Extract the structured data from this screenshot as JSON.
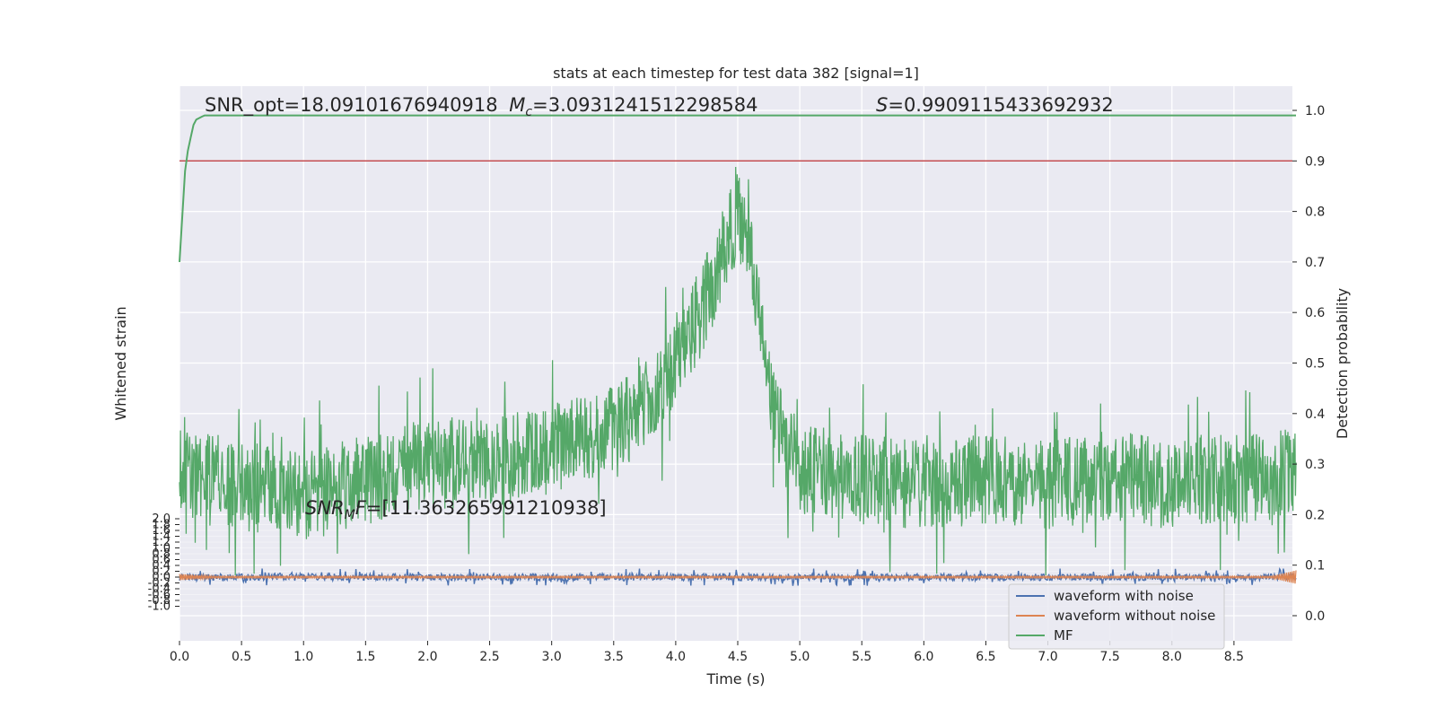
{
  "chart_data": {
    "type": "line",
    "title": "stats at each timestep for test data 382 [signal=1]",
    "xlabel": "Time (s)",
    "ylabel_left": "Whitened strain",
    "ylabel_right": "Detection probability",
    "xlim": [
      0.0,
      9.0
    ],
    "ylim_right": [
      -0.05,
      1.05
    ],
    "ylim_left": [
      -1.0,
      2.0
    ],
    "x_ticks": [
      "0.0",
      "0.5",
      "1.0",
      "1.5",
      "2.0",
      "2.5",
      "3.0",
      "3.5",
      "4.0",
      "4.5",
      "5.0",
      "5.5",
      "6.0",
      "6.5",
      "7.0",
      "7.5",
      "8.0",
      "8.5"
    ],
    "y_right_ticks": [
      "0.0",
      "0.1",
      "0.2",
      "0.3",
      "0.4",
      "0.5",
      "0.6",
      "0.7",
      "0.8",
      "0.9",
      "1.0"
    ],
    "y_left_ticks": [
      "-1.0",
      "-0.8",
      "-0.6",
      "-0.4",
      "-0.2",
      "0.0",
      "0.2",
      "0.4",
      "0.6",
      "0.8",
      "1.0",
      "1.2",
      "1.4",
      "1.6",
      "1.8",
      "2.0"
    ],
    "grid": true,
    "threshold": 0.9,
    "annotations": {
      "snr_opt": "SNR_opt=18.09101676940918",
      "mc_symbol": "M",
      "mc_sub": "c",
      "mc_value": "=3.0931241512298584",
      "s_symbol": "S",
      "s_value": "=0.9909115433692932",
      "snr_mf_symbol": "SNR",
      "snr_mf_sub": "M",
      "snr_mf_tail": "F",
      "snr_mf_value": "=[11.363265991210938]"
    },
    "legend": {
      "position": "bottom-right",
      "entries": [
        {
          "label": "waveform with noise",
          "color": "#4c72b0"
        },
        {
          "label": "waveform without noise",
          "color": "#dd8452"
        },
        {
          "label": "MF",
          "color": "#55a868"
        }
      ]
    },
    "series": [
      {
        "name": "waveform with noise",
        "color": "#4c72b0",
        "axis": "left",
        "baseline": 0.0,
        "amplitude": 0.12
      },
      {
        "name": "waveform without noise",
        "color": "#dd8452",
        "axis": "left",
        "baseline": 0.0,
        "amplitude": 0.03
      },
      {
        "name": "MF",
        "color": "#55a868",
        "axis": "right",
        "x": [
          0.0,
          0.05,
          0.12,
          0.2,
          0.3,
          9.0
        ],
        "y": [
          0.7,
          0.9,
          0.98,
          0.99,
          0.99,
          0.99
        ]
      },
      {
        "name": "Detection probability",
        "color": "#55a868",
        "axis": "right",
        "x": [
          0.0,
          0.5,
          1.0,
          1.5,
          2.0,
          2.5,
          3.0,
          3.5,
          3.8,
          4.0,
          4.2,
          4.4,
          4.5,
          4.6,
          4.7,
          4.8,
          5.0,
          5.5,
          6.0,
          6.5,
          7.0,
          7.5,
          8.0,
          8.5,
          9.0
        ],
        "y": [
          0.28,
          0.26,
          0.23,
          0.27,
          0.3,
          0.3,
          0.33,
          0.37,
          0.42,
          0.5,
          0.6,
          0.72,
          0.8,
          0.74,
          0.55,
          0.38,
          0.29,
          0.27,
          0.26,
          0.27,
          0.26,
          0.28,
          0.26,
          0.27,
          0.28
        ]
      }
    ]
  }
}
